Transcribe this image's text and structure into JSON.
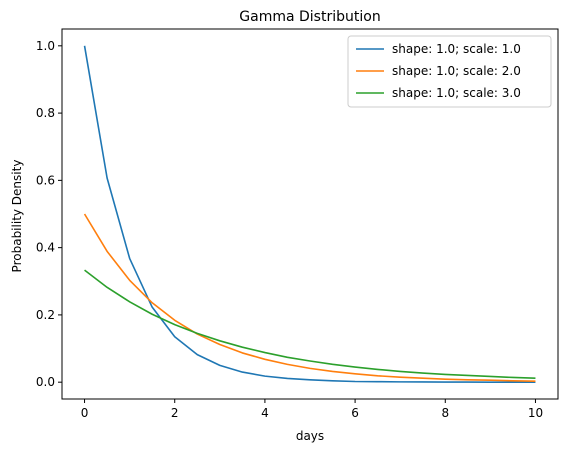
{
  "chart_data": {
    "type": "line",
    "title": "Gamma Distribution",
    "xlabel": "days",
    "ylabel": "Probability Density",
    "xlim": [
      -0.5,
      10.5
    ],
    "ylim": [
      -0.05,
      1.05
    ],
    "xticks": [
      0,
      2,
      4,
      6,
      8,
      10
    ],
    "xtick_labels": [
      "0",
      "2",
      "4",
      "6",
      "8",
      "10"
    ],
    "yticks": [
      0.0,
      0.2,
      0.4,
      0.6,
      0.8,
      1.0
    ],
    "ytick_labels": [
      "0.0",
      "0.2",
      "0.4",
      "0.6",
      "0.8",
      "1.0"
    ],
    "grid": false,
    "legend_position": "upper-right",
    "x": [
      0,
      0.5,
      1,
      1.5,
      2,
      2.5,
      3,
      3.5,
      4,
      4.5,
      5,
      5.5,
      6,
      6.5,
      7,
      7.5,
      8,
      8.5,
      9,
      9.5,
      10
    ],
    "series": [
      {
        "name": "shape: 1.0; scale: 1.0",
        "color": "#1f77b4",
        "values": [
          1.0,
          0.607,
          0.368,
          0.223,
          0.135,
          0.082,
          0.05,
          0.03,
          0.018,
          0.011,
          0.007,
          0.004,
          0.002,
          0.0015,
          0.0009,
          0.0006,
          0.0003,
          0.0002,
          0.0001,
          0.0001,
          0.0
        ]
      },
      {
        "name": "shape: 1.0; scale: 2.0",
        "color": "#ff7f0e",
        "values": [
          0.5,
          0.389,
          0.303,
          0.236,
          0.184,
          0.143,
          0.112,
          0.087,
          0.068,
          0.053,
          0.041,
          0.032,
          0.025,
          0.019,
          0.015,
          0.012,
          0.009,
          0.007,
          0.006,
          0.004,
          0.003
        ]
      },
      {
        "name": "shape: 1.0; scale: 3.0",
        "color": "#2ca02c",
        "values": [
          0.333,
          0.282,
          0.239,
          0.202,
          0.171,
          0.145,
          0.123,
          0.104,
          0.088,
          0.074,
          0.063,
          0.053,
          0.045,
          0.038,
          0.032,
          0.027,
          0.023,
          0.02,
          0.017,
          0.014,
          0.012
        ]
      }
    ]
  }
}
